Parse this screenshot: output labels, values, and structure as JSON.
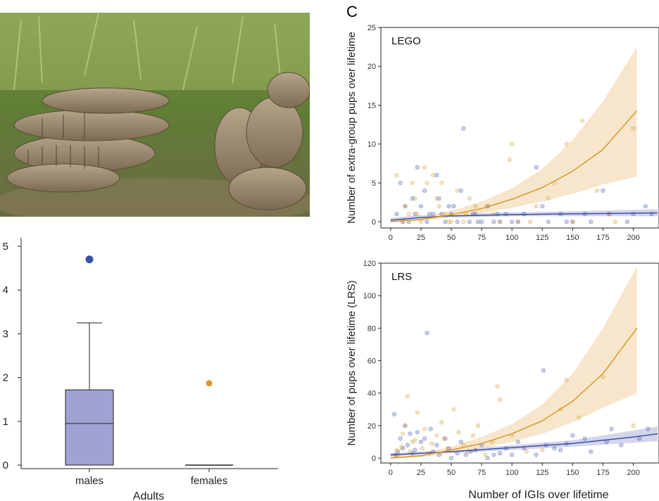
{
  "panel_c_letter": "C",
  "colors": {
    "male": "#3a4fa6",
    "female": "#d39b2a",
    "box_fill": "#9fa3d3",
    "female_band": "#f6e3c7",
    "male_band": "#c9cbe6"
  },
  "photo": {
    "description_icon": "mongoose-group-photo"
  },
  "chart_data": [
    {
      "type": "box",
      "categories": [
        "males",
        "females"
      ],
      "xlabel": "Adults",
      "ylabel": "",
      "ylim": [
        0,
        5
      ],
      "yticks": [
        "0",
        "1",
        "2",
        "3",
        "4",
        "5"
      ],
      "boxes": [
        {
          "category": "males",
          "q1": 0,
          "median": 0.95,
          "q3": 1.72,
          "whisker_low": 0,
          "whisker_high": 3.25,
          "outliers": [
            4.7
          ]
        },
        {
          "category": "females",
          "q1": 0,
          "median": 0,
          "q3": 0,
          "whisker_low": 0,
          "whisker_high": 0,
          "outliers": [
            1.87
          ]
        }
      ]
    },
    {
      "type": "scatter",
      "inset_label": "LEGO",
      "ylabel": "Number of extra-group pups over lifetime",
      "xlabel": "",
      "xlim": [
        -8,
        220
      ],
      "ylim": [
        -0.8,
        25
      ],
      "xticks": [
        "0",
        "25",
        "50",
        "75",
        "100",
        "125",
        "150",
        "175",
        "200"
      ],
      "yticks": [
        "0",
        "5",
        "10",
        "15",
        "20",
        "25"
      ],
      "series": [
        {
          "key": "male",
          "trend": {
            "x": [
              0,
              25,
              50,
              100,
              150,
              200,
              220
            ],
            "y": [
              0.2,
              0.55,
              0.75,
              0.92,
              1.02,
              1.1,
              1.15
            ]
          },
          "band_upper": [
            0.5,
            0.85,
            1.0,
            1.2,
            1.35,
            1.55,
            1.6
          ],
          "band_lower": [
            0.0,
            0.3,
            0.55,
            0.7,
            0.72,
            0.7,
            0.7
          ],
          "points": [
            [
              5,
              1
            ],
            [
              10,
              0
            ],
            [
              15,
              0
            ],
            [
              20,
              1
            ],
            [
              25,
              2
            ],
            [
              30,
              0
            ],
            [
              35,
              1
            ],
            [
              40,
              3
            ],
            [
              45,
              0
            ],
            [
              50,
              1
            ],
            [
              55,
              0
            ],
            [
              60,
              12
            ],
            [
              65,
              0
            ],
            [
              70,
              1
            ],
            [
              75,
              0
            ],
            [
              80,
              2
            ],
            [
              85,
              0
            ],
            [
              90,
              0
            ],
            [
              95,
              1
            ],
            [
              100,
              0
            ],
            [
              110,
              1
            ],
            [
              120,
              7
            ],
            [
              130,
              0
            ],
            [
              140,
              1
            ],
            [
              150,
              0
            ],
            [
              160,
              1
            ],
            [
              175,
              4
            ],
            [
              200,
              1
            ],
            [
              210,
              2
            ],
            [
              215,
              1
            ],
            [
              18,
              3
            ],
            [
              28,
              4
            ],
            [
              38,
              6
            ],
            [
              48,
              2
            ],
            [
              22,
              7
            ],
            [
              12,
              2
            ],
            [
              8,
              5
            ],
            [
              32,
              1
            ],
            [
              42,
              1
            ],
            [
              52,
              2
            ],
            [
              58,
              4
            ],
            [
              68,
              1
            ],
            [
              72,
              0
            ],
            [
              88,
              1
            ],
            [
              105,
              0
            ],
            [
              125,
              2
            ],
            [
              145,
              0
            ],
            [
              165,
              0
            ],
            [
              180,
              1
            ],
            [
              195,
              0
            ]
          ]
        },
        {
          "key": "female",
          "trend": {
            "x": [
              0,
              25,
              50,
              75,
              100,
              125,
              150,
              175,
              203
            ],
            "y": [
              0,
              0.3,
              0.9,
              1.7,
              2.9,
              4.4,
              6.5,
              9.3,
              14.3
            ]
          },
          "band_upper": [
            0.1,
            0.6,
            1.4,
            2.6,
            4.3,
            6.8,
            10.5,
            15.5,
            22.5
          ],
          "band_lower": [
            0,
            0.1,
            0.55,
            1.1,
            1.8,
            2.6,
            3.6,
            4.8,
            5.8
          ],
          "points": [
            [
              5,
              6
            ],
            [
              10,
              0
            ],
            [
              15,
              1
            ],
            [
              20,
              3
            ],
            [
              25,
              0
            ],
            [
              30,
              5
            ],
            [
              35,
              6
            ],
            [
              40,
              2
            ],
            [
              45,
              1
            ],
            [
              50,
              0
            ],
            [
              55,
              4
            ],
            [
              60,
              0
            ],
            [
              65,
              3
            ],
            [
              80,
              2
            ],
            [
              90,
              0
            ],
            [
              98,
              8
            ],
            [
              100,
              10
            ],
            [
              115,
              0
            ],
            [
              130,
              3
            ],
            [
              145,
              10
            ],
            [
              150,
              0
            ],
            [
              158,
              13
            ],
            [
              170,
              4
            ],
            [
              185,
              0
            ],
            [
              200,
              12
            ],
            [
              18,
              5
            ],
            [
              28,
              7
            ],
            [
              38,
              3
            ],
            [
              48,
              0
            ],
            [
              12,
              2
            ],
            [
              22,
              1
            ],
            [
              42,
              5
            ],
            [
              62,
              1
            ],
            [
              70,
              2
            ],
            [
              85,
              1
            ],
            [
              105,
              0
            ],
            [
              120,
              2
            ],
            [
              135,
              5
            ],
            [
              180,
              1
            ]
          ]
        }
      ]
    },
    {
      "type": "scatter",
      "inset_label": "LRS",
      "ylabel": "Number of pups over lifetime (LRS)",
      "xlabel": "Number of IGIs over lifetime",
      "xlim": [
        -8,
        220
      ],
      "ylim": [
        -3,
        120
      ],
      "xticks": [
        "0",
        "25",
        "50",
        "75",
        "100",
        "125",
        "150",
        "175",
        "200"
      ],
      "yticks": [
        "0",
        "20",
        "40",
        "60",
        "80",
        "100",
        "120"
      ],
      "series": [
        {
          "key": "male",
          "trend": {
            "x": [
              0,
              50,
              100,
              150,
              200,
              220
            ],
            "y": [
              2,
              4,
              6.5,
              9,
              13,
              15
            ]
          },
          "band_upper": [
            3,
            5,
            8,
            11,
            17,
            19.5
          ],
          "band_lower": [
            1,
            3,
            5,
            7,
            9.5,
            10.5
          ],
          "points": [
            [
              3,
              27
            ],
            [
              8,
              12
            ],
            [
              12,
              20
            ],
            [
              16,
              15
            ],
            [
              20,
              5
            ],
            [
              25,
              10
            ],
            [
              30,
              77
            ],
            [
              33,
              18
            ],
            [
              38,
              8
            ],
            [
              45,
              12
            ],
            [
              50,
              0
            ],
            [
              55,
              3
            ],
            [
              62,
              2
            ],
            [
              70,
              5
            ],
            [
              80,
              0
            ],
            [
              90,
              3
            ],
            [
              100,
              2
            ],
            [
              110,
              6
            ],
            [
              126,
              54
            ],
            [
              128,
              8
            ],
            [
              140,
              5
            ],
            [
              145,
              9
            ],
            [
              160,
              12
            ],
            [
              165,
              4
            ],
            [
              178,
              10
            ],
            [
              190,
              8
            ],
            [
              205,
              12
            ],
            [
              212,
              18
            ],
            [
              4,
              2
            ],
            [
              6,
              4
            ],
            [
              10,
              6
            ],
            [
              14,
              8
            ],
            [
              18,
              3
            ],
            [
              22,
              16
            ],
            [
              28,
              12
            ],
            [
              35,
              4
            ],
            [
              40,
              2
            ],
            [
              48,
              6
            ],
            [
              58,
              10
            ],
            [
              66,
              4
            ],
            [
              75,
              8
            ],
            [
              85,
              2
            ],
            [
              95,
              6
            ],
            [
              105,
              10
            ],
            [
              120,
              2
            ],
            [
              135,
              6
            ],
            [
              150,
              14
            ],
            [
              182,
              18
            ]
          ]
        },
        {
          "key": "female",
          "trend": {
            "x": [
              0,
              25,
              50,
              75,
              100,
              125,
              150,
              175,
              203
            ],
            "y": [
              0,
              1.5,
              5,
              9,
              15,
              23,
              35,
              52,
              80
            ]
          },
          "band_upper": [
            1,
            3,
            7,
            13,
            21,
            33,
            52,
            80,
            118
          ],
          "band_lower": [
            0,
            0.5,
            3,
            6,
            10,
            15,
            22,
            31,
            40
          ],
          "points": [
            [
              5,
              5
            ],
            [
              10,
              15
            ],
            [
              14,
              38
            ],
            [
              18,
              10
            ],
            [
              22,
              28
            ],
            [
              28,
              18
            ],
            [
              32,
              3
            ],
            [
              38,
              14
            ],
            [
              42,
              22
            ],
            [
              47,
              6
            ],
            [
              52,
              30
            ],
            [
              60,
              8
            ],
            [
              68,
              14
            ],
            [
              78,
              2
            ],
            [
              88,
              44
            ],
            [
              90,
              36
            ],
            [
              100,
              14
            ],
            [
              112,
              4
            ],
            [
              125,
              5
            ],
            [
              140,
              30
            ],
            [
              145,
              48
            ],
            [
              155,
              25
            ],
            [
              175,
              50
            ],
            [
              200,
              20
            ],
            [
              6,
              2
            ],
            [
              9,
              7
            ],
            [
              12,
              20
            ],
            [
              16,
              4
            ],
            [
              20,
              11
            ],
            [
              26,
              6
            ],
            [
              34,
              9
            ],
            [
              44,
              12
            ],
            [
              56,
              16
            ],
            [
              64,
              4
            ],
            [
              72,
              20
            ],
            [
              84,
              10
            ]
          ]
        }
      ]
    }
  ]
}
